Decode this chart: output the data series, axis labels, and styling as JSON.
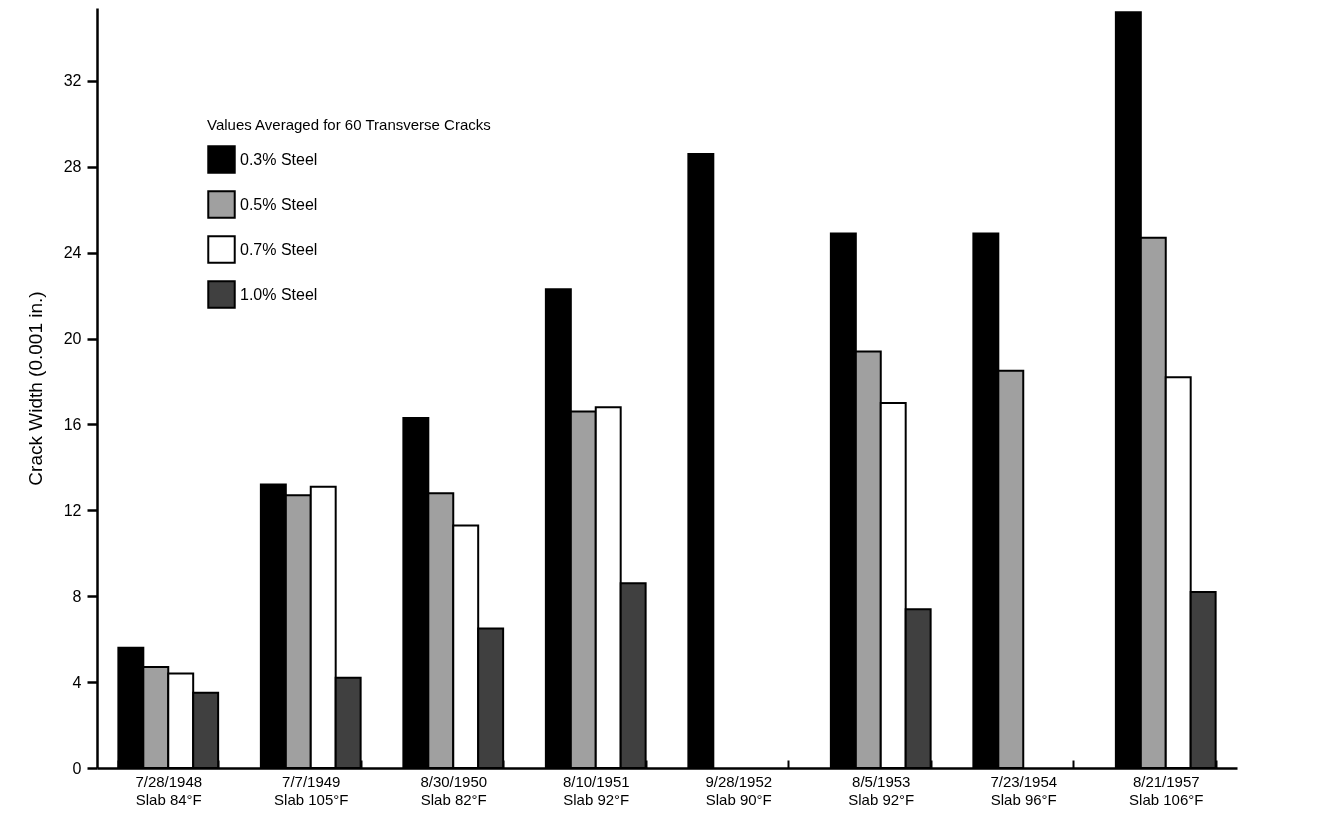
{
  "chart_data": {
    "type": "bar",
    "ylabel": "Crack Width (0.001 in.)",
    "legend_title": "Values Averaged for 60 Transverse Cracks",
    "legend": "top left",
    "grid": false,
    "categories": [
      "7/28/1948\nSlab 84°F",
      "7/7/1949\nSlab 105°F",
      "8/30/1950\nSlab 82°F",
      "8/10/1951\nSlab 92°F",
      "9/28/1952\nSlab 90°F",
      "8/5/1953\nSlab 92°F",
      "7/23/1954\nSlab 96°F",
      "8/21/1957\nSlab 106°F"
    ],
    "ylim": [
      0,
      35.4
    ],
    "yticks": [
      0,
      4,
      8,
      12,
      16,
      20,
      24,
      28,
      32
    ],
    "series": [
      {
        "name": "0.3% Steel",
        "color": "#000000",
        "values": [
          5.6,
          13.2,
          16.3,
          22.3,
          28.6,
          24.9,
          24.9,
          35.2
        ]
      },
      {
        "name": "0.5% Steel",
        "color": "#a0a0a0",
        "values": [
          4.7,
          12.7,
          12.8,
          16.6,
          null,
          19.4,
          18.5,
          24.7
        ]
      },
      {
        "name": "0.7% Steel",
        "color": "#ffffff",
        "values": [
          4.4,
          13.1,
          11.3,
          16.8,
          null,
          17.0,
          null,
          18.2
        ]
      },
      {
        "name": "1.0% Steel",
        "color": "#404040",
        "values": [
          3.5,
          4.2,
          6.5,
          8.6,
          null,
          7.4,
          null,
          8.2
        ]
      }
    ]
  }
}
